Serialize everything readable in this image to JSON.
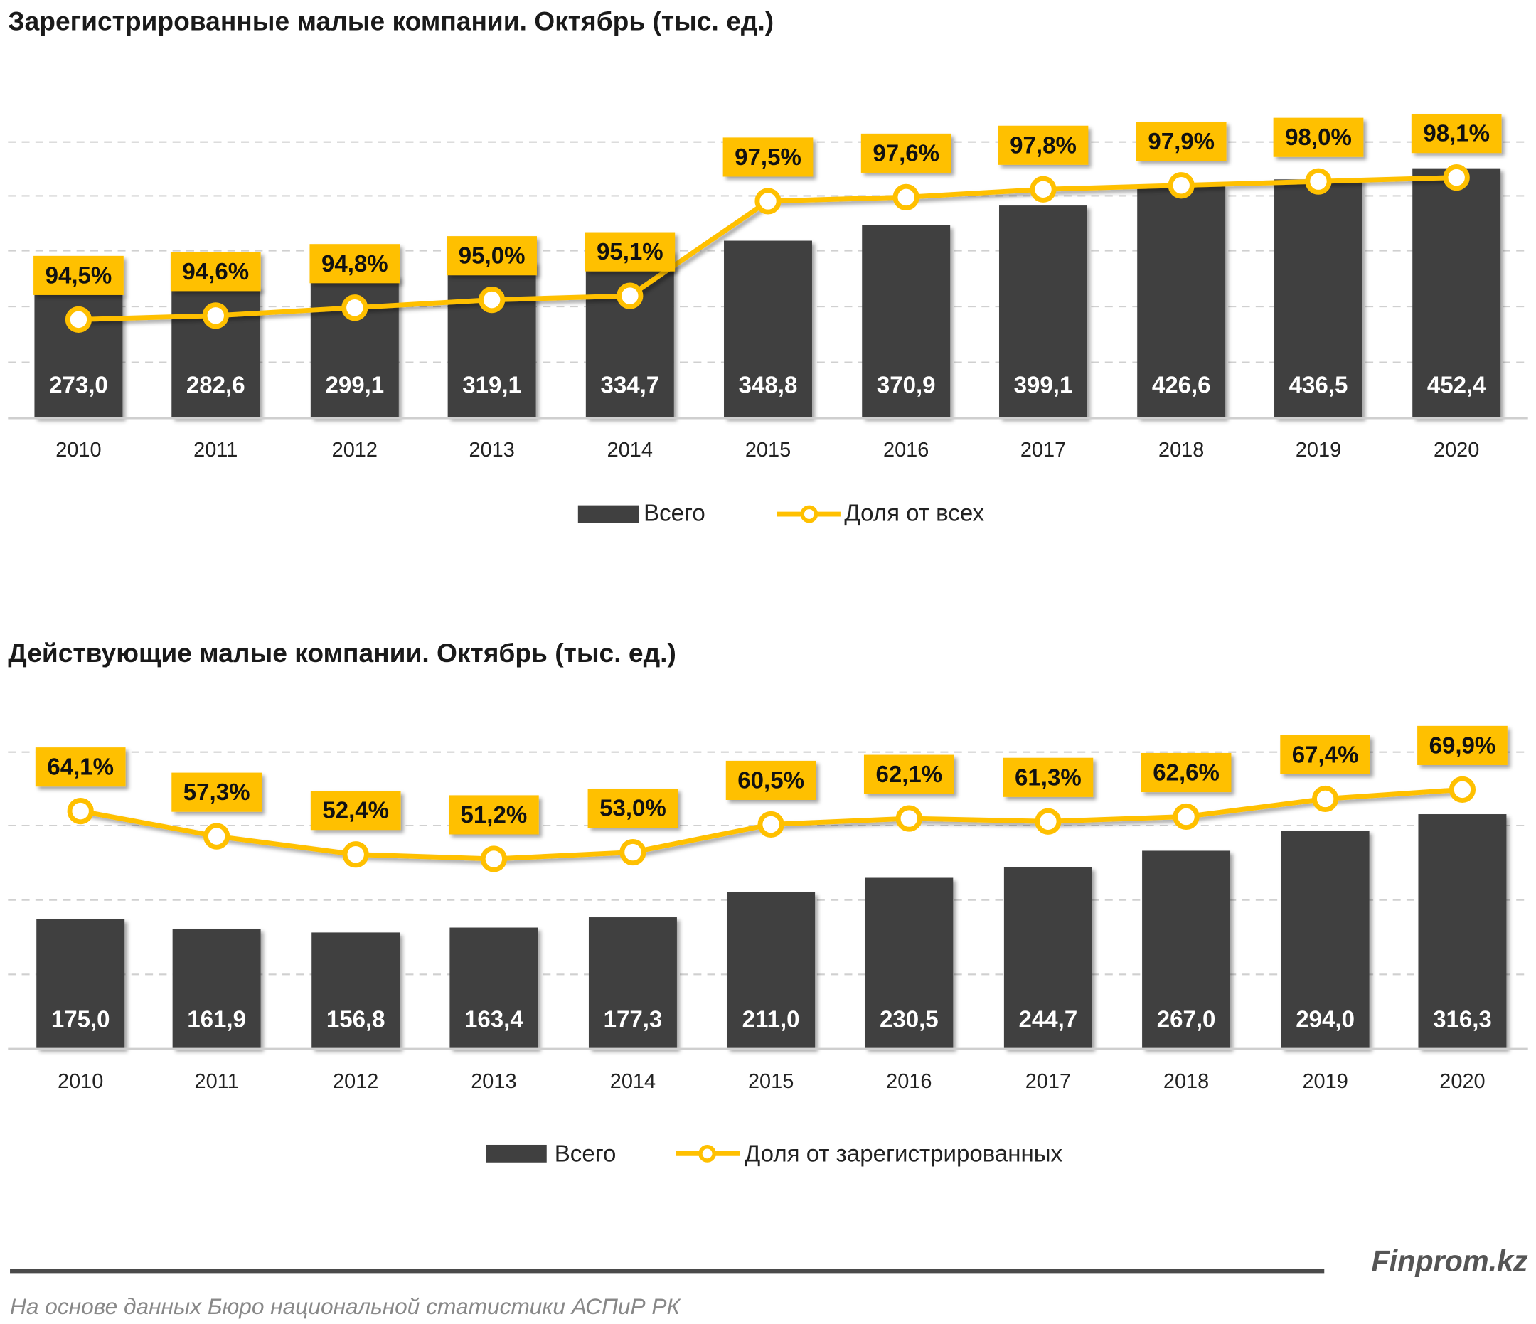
{
  "colors": {
    "bar": "#404040",
    "line": "#FFC000",
    "label_bg": "#FFC000",
    "grid": "#d0d0d0"
  },
  "chart_data": [
    {
      "type": "bar+line",
      "title": "Зарегистрированные малые компании. Октябрь (тыс. ед.)",
      "categories": [
        "2010",
        "2011",
        "2012",
        "2013",
        "2014",
        "2015",
        "2016",
        "2017",
        "2018",
        "2019",
        "2020"
      ],
      "series": [
        {
          "name": "Всего",
          "type": "bar",
          "values": [
            273.0,
            282.6,
            299.1,
            319.1,
            334.7,
            348.8,
            370.9,
            399.1,
            426.6,
            436.5,
            452.4
          ],
          "labels": [
            "273,0",
            "282,6",
            "299,1",
            "319,1",
            "334,7",
            "348,8",
            "370,9",
            "399,1",
            "426,6",
            "436,5",
            "452,4"
          ]
        },
        {
          "name": "Доля от всех",
          "type": "line",
          "values": [
            94.5,
            94.6,
            94.8,
            95.0,
            95.1,
            97.5,
            97.6,
            97.8,
            97.9,
            98.0,
            98.1
          ],
          "labels": [
            "94,5%",
            "94,6%",
            "94,8%",
            "95,0%",
            "95,1%",
            "97,5%",
            "97,6%",
            "97,8%",
            "97,9%",
            "98,0%",
            "98,1%"
          ]
        }
      ],
      "ylim": [
        95,
        490
      ],
      "y2lim": [
        92,
        99
      ],
      "grid": true,
      "legend": "bottom"
    },
    {
      "type": "bar+line",
      "title": "Действующие малые компании. Октябрь (тыс. ед.)",
      "categories": [
        "2010",
        "2011",
        "2012",
        "2013",
        "2014",
        "2015",
        "2016",
        "2017",
        "2018",
        "2019",
        "2020"
      ],
      "series": [
        {
          "name": "Всего",
          "type": "bar",
          "values": [
            175.0,
            161.9,
            156.8,
            163.4,
            177.3,
            211.0,
            230.5,
            244.7,
            267.0,
            294.0,
            316.3
          ],
          "labels": [
            "175,0",
            "161,9",
            "156,8",
            "163,4",
            "177,3",
            "211,0",
            "230,5",
            "244,7",
            "267,0",
            "294,0",
            "316,3"
          ]
        },
        {
          "name": "Доля от зарегистрированных",
          "type": "line",
          "values": [
            64.1,
            57.3,
            52.4,
            51.2,
            53.0,
            60.5,
            62.1,
            61.3,
            62.6,
            67.4,
            69.9
          ],
          "labels": [
            "64,1%",
            "57,3%",
            "52,4%",
            "51,2%",
            "53,0%",
            "60,5%",
            "62,1%",
            "61,3%",
            "62,6%",
            "67,4%",
            "69,9%"
          ]
        }
      ],
      "ylim": [
        0,
        400
      ],
      "y2lim": [
        0,
        80
      ],
      "grid": true,
      "legend": "bottom"
    }
  ],
  "footer": {
    "brand": "Finprom.kz",
    "source": "На основе данных Бюро национальной статистики АСПиР РК"
  }
}
